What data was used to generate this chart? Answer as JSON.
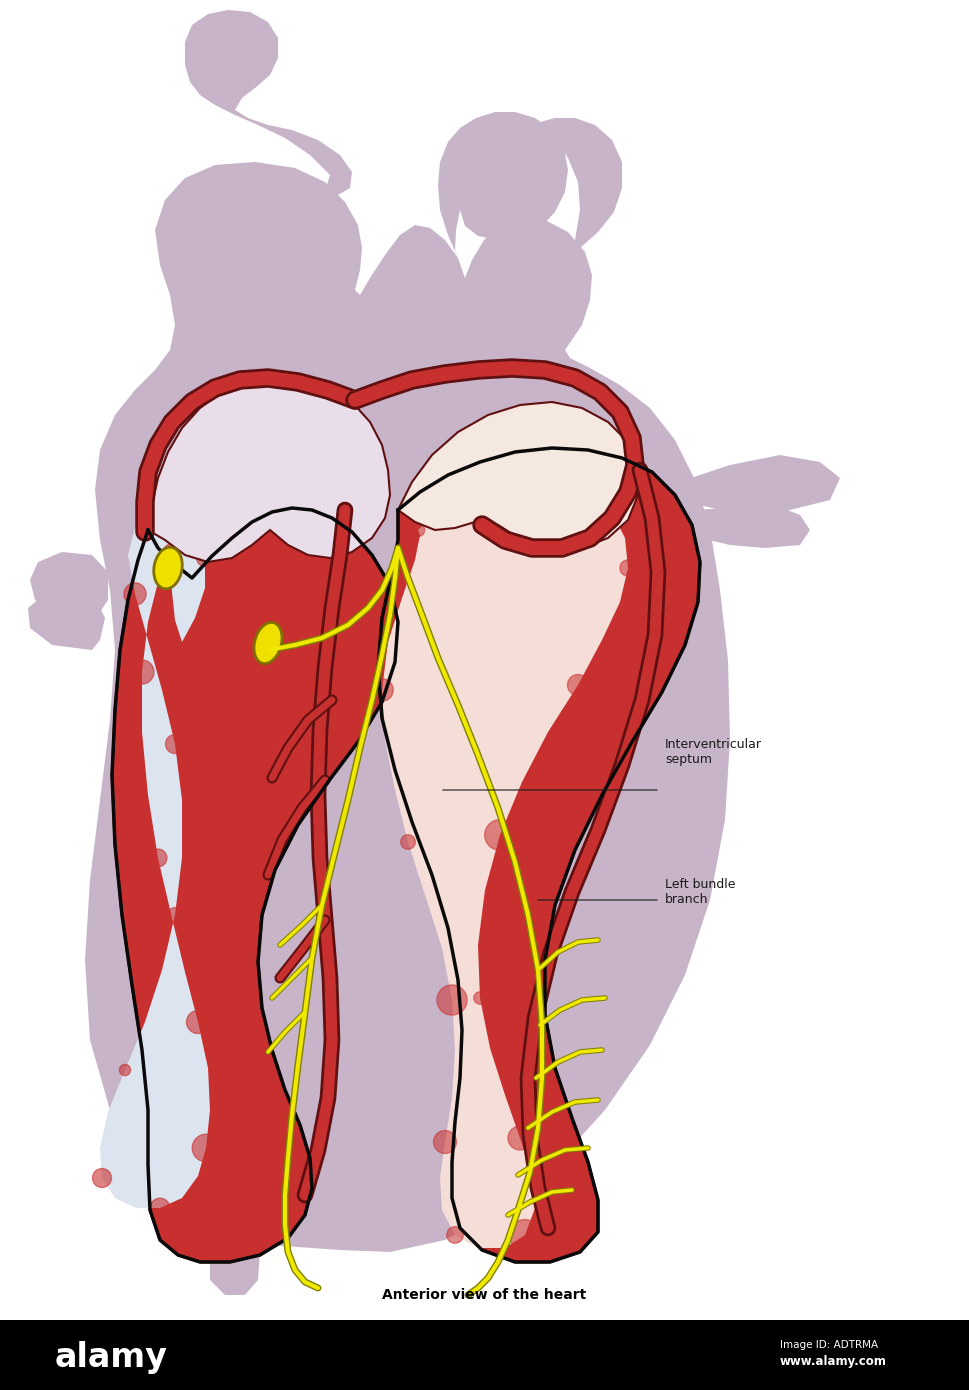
{
  "title": "Anterior view of the heart",
  "label1": "Interventricular\nseptum",
  "label2": "Left bundle\nbranch",
  "bg_color": "#ffffff",
  "bottom_bar_color": "#000000",
  "bottom_text_color": "#ffffff",
  "alamy_text": "alamy",
  "image_id_text": "Image ID: ADTRMA",
  "website_text": "www.alamy.com",
  "title_color": "#000000",
  "title_fontsize": 10,
  "heart_outer_color": "#c8b4c8",
  "heart_outer_color2": "#d4c0d4",
  "muscle_color": "#c83030",
  "muscle_dark": "#601010",
  "rv_interior": "#dce4f0",
  "lv_interior": "#f5ddd8",
  "septum_color": "#b82020",
  "node_yellow": "#f0e000",
  "node_outline": "#807000",
  "conduction_yellow": "#f0e800",
  "conduction_outline": "#808000",
  "annotation_color": "#1a1a1a",
  "annotation_fontsize": 9,
  "label_fontsize": 9
}
